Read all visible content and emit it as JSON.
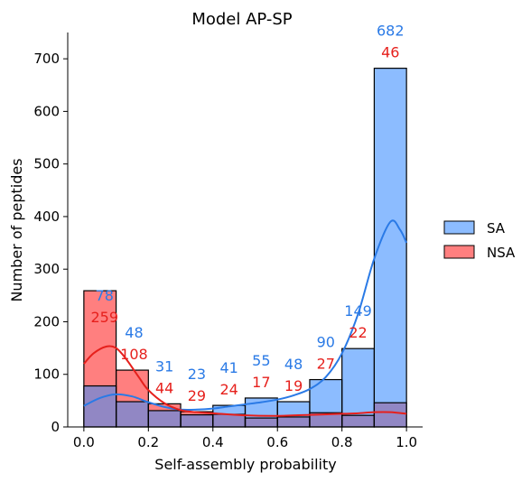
{
  "chart_data": {
    "type": "bar",
    "title": "Model AP-SP",
    "xlabel": "Self-assembly probability",
    "ylabel": "Number of peptides",
    "xlim": [
      -0.05,
      1.05
    ],
    "ylim": [
      0,
      750
    ],
    "x_ticks": [
      "0.0",
      "0.2",
      "0.4",
      "0.6",
      "0.8",
      "1.0"
    ],
    "y_ticks": [
      "0",
      "100",
      "200",
      "300",
      "400",
      "500",
      "600",
      "700"
    ],
    "bin_edges": [
      0.0,
      0.1,
      0.2,
      0.3,
      0.4,
      0.5,
      0.6,
      0.7,
      0.8,
      0.9,
      1.0
    ],
    "legend_position": "right",
    "series": [
      {
        "name": "SA",
        "color": "#8cbcff",
        "kde_color": "#2a7ae6",
        "label_color": "#2a7ae6",
        "values": [
          78,
          48,
          31,
          23,
          41,
          55,
          48,
          90,
          149,
          682
        ],
        "value_labels": [
          "78",
          "48",
          "31",
          "23",
          "41",
          "55",
          "48",
          "90",
          "149",
          "682"
        ],
        "kde": [
          [
            0.0,
            40
          ],
          [
            0.05,
            55
          ],
          [
            0.1,
            62
          ],
          [
            0.15,
            58
          ],
          [
            0.2,
            47
          ],
          [
            0.25,
            38
          ],
          [
            0.3,
            33
          ],
          [
            0.35,
            33
          ],
          [
            0.4,
            35
          ],
          [
            0.45,
            39
          ],
          [
            0.5,
            43
          ],
          [
            0.55,
            47
          ],
          [
            0.6,
            52
          ],
          [
            0.65,
            60
          ],
          [
            0.7,
            72
          ],
          [
            0.75,
            95
          ],
          [
            0.8,
            140
          ],
          [
            0.85,
            215
          ],
          [
            0.9,
            320
          ],
          [
            0.95,
            390
          ],
          [
            0.98,
            375
          ],
          [
            1.0,
            350
          ]
        ]
      },
      {
        "name": "NSA",
        "color": "#ff7f7f",
        "kde_color": "#e6201c",
        "label_color": "#e6201c",
        "values": [
          259,
          108,
          44,
          29,
          24,
          17,
          19,
          27,
          22,
          46
        ],
        "value_labels": [
          "259",
          "108",
          "44",
          "29",
          "24",
          "17",
          "19",
          "27",
          "22",
          "46"
        ],
        "kde": [
          [
            0.0,
            120
          ],
          [
            0.03,
            140
          ],
          [
            0.07,
            153
          ],
          [
            0.1,
            150
          ],
          [
            0.13,
            130
          ],
          [
            0.17,
            95
          ],
          [
            0.2,
            70
          ],
          [
            0.25,
            45
          ],
          [
            0.3,
            32
          ],
          [
            0.35,
            28
          ],
          [
            0.4,
            26
          ],
          [
            0.5,
            22
          ],
          [
            0.6,
            21
          ],
          [
            0.7,
            23
          ],
          [
            0.8,
            25
          ],
          [
            0.85,
            26
          ],
          [
            0.9,
            28
          ],
          [
            0.95,
            28
          ],
          [
            1.0,
            25
          ]
        ]
      }
    ]
  }
}
